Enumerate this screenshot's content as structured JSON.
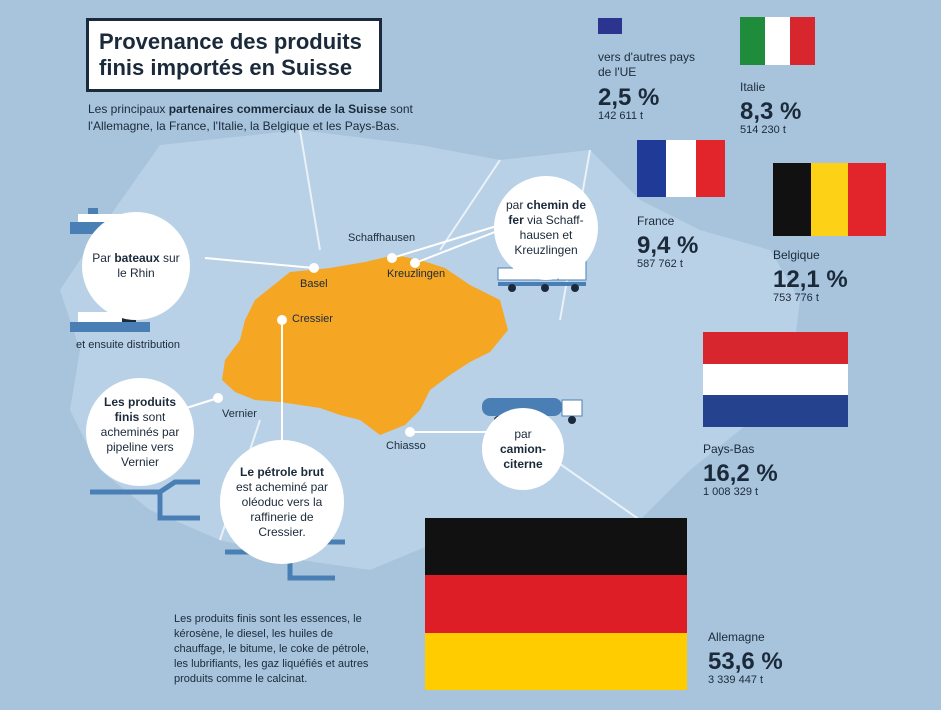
{
  "title": {
    "line1": "Provenance des produits",
    "line2": "finis importés en Suisse"
  },
  "intro": {
    "text_before": "Les principaux ",
    "text_bold": "partenaires commerciaux de la Suisse",
    "text_after": " sont l'Allemagne, la France, l'Italie, la Belgique et les Pays-Bas."
  },
  "cities": {
    "schaffhausen": "Schaffhausen",
    "basel": "Basel",
    "kreuzlingen": "Kreuzlingen",
    "cressier": "Cressier",
    "vernier": "Vernier",
    "chiasso": "Chiasso"
  },
  "circles": {
    "bateaux": {
      "pre": "Par ",
      "bold": "bateaux",
      "post": " sur le Rhin"
    },
    "rail": {
      "pre": "par ",
      "bold": "chemin de fer",
      "post": " via Schaff-hausen et Kreuzlingen"
    },
    "pipeline": {
      "bold": "Les produits finis",
      "post": " sont acheminés par pipeline vers Vernier"
    },
    "petrole": {
      "bold": "Le pétrole brut",
      "post": " est acheminé par oléoduc vers la raffinerie de Cressier."
    },
    "camion": {
      "pre": "par ",
      "bold": "camion-citerne"
    }
  },
  "notes": {
    "distribution": "et ensuite distribution",
    "produits_finis": "Les produits finis sont les essences, le kérosène, le diesel, les huiles de chauffage, le bitume, le coke de pétrole, les lubrifiants, les gaz liquéfiés et autres produits comme le calcinat."
  },
  "stats": {
    "ue": {
      "name": "vers d'autres pays de l'UE",
      "pct": "2,5 %",
      "tons": "142 611 t",
      "color": "#2b3590"
    },
    "italie": {
      "name": "Italie",
      "pct": "8,3 %",
      "tons": "514 230 t"
    },
    "france": {
      "name": "France",
      "pct": "9,4 %",
      "tons": "587 762 t"
    },
    "belgique": {
      "name": "Belgique",
      "pct": "12,1 %",
      "tons": "753 776 t"
    },
    "paysbas": {
      "name": "Pays-Bas",
      "pct": "16,2 %",
      "tons": "1 008 329 t"
    },
    "allemagne": {
      "name": "Allemagne",
      "pct": "53,6 %",
      "tons": "3 339 447 t"
    }
  },
  "colors": {
    "background": "#a7c4dc",
    "neighbors": "#b9d1e6",
    "switzerland": "#f5a623",
    "text": "#1b2a3a"
  }
}
